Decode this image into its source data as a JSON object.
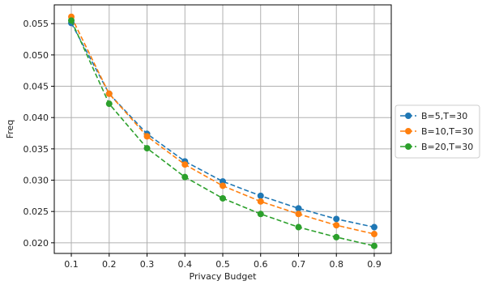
{
  "chart_data": {
    "type": "line",
    "title": "",
    "xlabel": "Privacy Budget",
    "ylabel": "Freq",
    "x": [
      0.1,
      0.2,
      0.3,
      0.4,
      0.5,
      0.6,
      0.7,
      0.8,
      0.9
    ],
    "x_tick_labels": [
      "0.1",
      "0.2",
      "0.3",
      "0.4",
      "0.5",
      "0.6",
      "0.7",
      "0.8",
      "0.9"
    ],
    "y_ticks": [
      0.02,
      0.025,
      0.03,
      0.035,
      0.04,
      0.045,
      0.05,
      0.055
    ],
    "y_tick_labels": [
      "0.020",
      "0.025",
      "0.030",
      "0.035",
      "0.040",
      "0.045",
      "0.050",
      "0.055"
    ],
    "xlim": [
      0.055,
      0.945
    ],
    "ylim": [
      0.0183,
      0.058
    ],
    "grid": true,
    "legend_position": "right, outside plot area",
    "series": [
      {
        "name": "B=5,T=30",
        "color": "#1f77b4",
        "line_style": "dashed",
        "marker": "circle",
        "values": [
          0.0551,
          0.0438,
          0.0374,
          0.033,
          0.0298,
          0.0275,
          0.0255,
          0.0238,
          0.0225
        ]
      },
      {
        "name": "B=10,T=30",
        "color": "#ff7f0e",
        "line_style": "dashed",
        "marker": "circle",
        "values": [
          0.0561,
          0.0438,
          0.037,
          0.0325,
          0.0291,
          0.0266,
          0.0246,
          0.0228,
          0.0214
        ]
      },
      {
        "name": "B=20,T=30",
        "color": "#2ca02c",
        "line_style": "dashed",
        "marker": "circle",
        "values": [
          0.0555,
          0.0422,
          0.0351,
          0.0305,
          0.0271,
          0.0246,
          0.0225,
          0.0209,
          0.0195
        ]
      }
    ]
  }
}
